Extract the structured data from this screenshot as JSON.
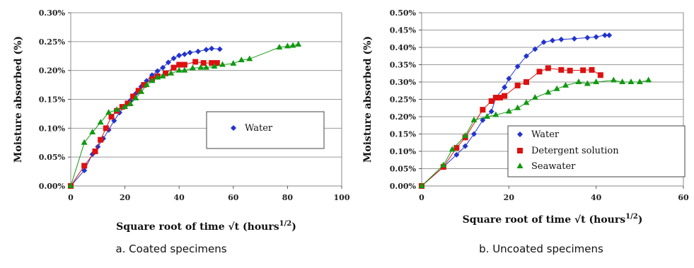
{
  "chart_data": [
    {
      "type": "scatter",
      "caption": "a. Coated specimens",
      "xlabel": "Square root of time √t (hours",
      "xlabel_sup": "1/2",
      "xlabel_close": ")",
      "ylabel": "Moisture absorbed (%)",
      "xlim": [
        0,
        100
      ],
      "ylim": [
        0,
        0.3
      ],
      "xticks": [
        0,
        20,
        40,
        60,
        80,
        100
      ],
      "yticks": [
        0,
        0.05,
        0.1,
        0.15,
        0.2,
        0.25,
        0.3
      ],
      "ytick_labels": [
        "0.00%",
        "0.05%",
        "0.10%",
        "0.15%",
        "0.20%",
        "0.25%",
        "0.30%"
      ],
      "grid": true,
      "legend_position": "center-right",
      "legend": [
        {
          "name": "Water",
          "marker": "diamond",
          "color": "#2233cc"
        }
      ],
      "series": [
        {
          "marker": "diamond",
          "color": "#2233cc",
          "points": [
            [
              0,
              0
            ],
            [
              5,
              0.027
            ],
            [
              8,
              0.055
            ],
            [
              10,
              0.068
            ],
            [
              12,
              0.082
            ],
            [
              14,
              0.097
            ],
            [
              16,
              0.113
            ],
            [
              18,
              0.127
            ],
            [
              20,
              0.138
            ],
            [
              22,
              0.148
            ],
            [
              24,
              0.16
            ],
            [
              26,
              0.172
            ],
            [
              28,
              0.182
            ],
            [
              30,
              0.192
            ],
            [
              32,
              0.199
            ],
            [
              34,
              0.205
            ],
            [
              36,
              0.214
            ],
            [
              38,
              0.221
            ],
            [
              40,
              0.226
            ],
            [
              42,
              0.228
            ],
            [
              44,
              0.231
            ],
            [
              47,
              0.233
            ],
            [
              50,
              0.236
            ],
            [
              52,
              0.238
            ],
            [
              55,
              0.237
            ]
          ]
        },
        {
          "marker": "square",
          "color": "#dd1111",
          "points": [
            [
              0,
              0
            ],
            [
              5,
              0.035
            ],
            [
              9,
              0.06
            ],
            [
              11,
              0.08
            ],
            [
              13,
              0.1
            ],
            [
              15,
              0.12
            ],
            [
              17,
              0.13
            ],
            [
              19,
              0.137
            ],
            [
              21,
              0.143
            ],
            [
              23,
              0.155
            ],
            [
              25,
              0.165
            ],
            [
              27,
              0.175
            ],
            [
              30,
              0.185
            ],
            [
              32,
              0.19
            ],
            [
              35,
              0.195
            ],
            [
              38,
              0.205
            ],
            [
              40,
              0.21
            ],
            [
              42,
              0.21
            ],
            [
              46,
              0.215
            ],
            [
              49,
              0.213
            ],
            [
              52,
              0.213
            ],
            [
              54,
              0.213
            ]
          ]
        },
        {
          "marker": "triangle",
          "color": "#119911",
          "points": [
            [
              0,
              0
            ],
            [
              5,
              0.075
            ],
            [
              8,
              0.093
            ],
            [
              11,
              0.11
            ],
            [
              14,
              0.127
            ],
            [
              17,
              0.132
            ],
            [
              20,
              0.137
            ],
            [
              22,
              0.142
            ],
            [
              24,
              0.152
            ],
            [
              26,
              0.163
            ],
            [
              28,
              0.175
            ],
            [
              30,
              0.182
            ],
            [
              32,
              0.188
            ],
            [
              34,
              0.19
            ],
            [
              37,
              0.195
            ],
            [
              40,
              0.2
            ],
            [
              42,
              0.2
            ],
            [
              45,
              0.204
            ],
            [
              48,
              0.205
            ],
            [
              50,
              0.205
            ],
            [
              53,
              0.207
            ],
            [
              56,
              0.21
            ],
            [
              60,
              0.212
            ],
            [
              63,
              0.218
            ],
            [
              66,
              0.22
            ],
            [
              77,
              0.24
            ],
            [
              80,
              0.242
            ],
            [
              82,
              0.243
            ],
            [
              84,
              0.245
            ]
          ]
        }
      ]
    },
    {
      "type": "scatter",
      "caption": "b. Uncoated specimens",
      "xlabel": "Square root of time √t (hours",
      "xlabel_sup": "1/2",
      "xlabel_close": ")",
      "ylabel": "Moisture absorbed (%)",
      "xlim": [
        0,
        60
      ],
      "ylim": [
        0,
        0.5
      ],
      "xticks": [
        0,
        20,
        40,
        60
      ],
      "yticks": [
        0,
        0.05,
        0.1,
        0.15,
        0.2,
        0.25,
        0.3,
        0.35,
        0.4,
        0.45,
        0.5
      ],
      "ytick_labels": [
        "0.00%",
        "0.05%",
        "0.10%",
        "0.15%",
        "0.20%",
        "0.25%",
        "0.30%",
        "0.35%",
        "0.40%",
        "0.45%",
        "0.50%"
      ],
      "grid": true,
      "legend_position": "bottom-right",
      "legend": [
        {
          "name": "Water",
          "marker": "diamond",
          "color": "#2233cc"
        },
        {
          "name": "Detergent solution",
          "marker": "square",
          "color": "#dd1111"
        },
        {
          "name": "Seawater",
          "marker": "triangle",
          "color": "#119911"
        }
      ],
      "series": [
        {
          "name": "Water",
          "marker": "diamond",
          "color": "#2233cc",
          "points": [
            [
              0,
              0
            ],
            [
              5,
              0.055
            ],
            [
              8,
              0.09
            ],
            [
              10,
              0.115
            ],
            [
              12,
              0.15
            ],
            [
              14,
              0.19
            ],
            [
              16,
              0.215
            ],
            [
              17,
              0.255
            ],
            [
              19,
              0.285
            ],
            [
              20,
              0.31
            ],
            [
              22,
              0.345
            ],
            [
              24,
              0.375
            ],
            [
              26,
              0.395
            ],
            [
              28,
              0.415
            ],
            [
              30,
              0.42
            ],
            [
              32,
              0.423
            ],
            [
              35,
              0.425
            ],
            [
              38,
              0.428
            ],
            [
              40,
              0.43
            ],
            [
              42,
              0.435
            ],
            [
              43,
              0.435
            ]
          ]
        },
        {
          "name": "Detergent solution",
          "marker": "square",
          "color": "#dd1111",
          "points": [
            [
              0,
              0
            ],
            [
              5,
              0.055
            ],
            [
              8,
              0.11
            ],
            [
              10,
              0.14
            ],
            [
              14,
              0.22
            ],
            [
              16,
              0.245
            ],
            [
              17,
              0.255
            ],
            [
              18,
              0.255
            ],
            [
              19,
              0.26
            ],
            [
              22,
              0.29
            ],
            [
              24,
              0.3
            ],
            [
              27,
              0.33
            ],
            [
              29,
              0.34
            ],
            [
              32,
              0.335
            ],
            [
              34,
              0.333
            ],
            [
              37,
              0.334
            ],
            [
              39,
              0.335
            ],
            [
              41,
              0.32
            ]
          ]
        },
        {
          "name": "Seawater",
          "marker": "triangle",
          "color": "#119911",
          "points": [
            [
              0,
              0
            ],
            [
              5,
              0.06
            ],
            [
              7,
              0.105
            ],
            [
              10,
              0.145
            ],
            [
              12,
              0.19
            ],
            [
              15,
              0.2
            ],
            [
              17,
              0.205
            ],
            [
              20,
              0.215
            ],
            [
              22,
              0.225
            ],
            [
              24,
              0.24
            ],
            [
              26,
              0.255
            ],
            [
              29,
              0.27
            ],
            [
              31,
              0.28
            ],
            [
              33,
              0.29
            ],
            [
              36,
              0.3
            ],
            [
              38,
              0.295
            ],
            [
              40,
              0.3
            ],
            [
              44,
              0.305
            ],
            [
              46,
              0.3
            ],
            [
              48,
              0.3
            ],
            [
              50,
              0.3
            ],
            [
              52,
              0.305
            ]
          ]
        }
      ]
    }
  ]
}
